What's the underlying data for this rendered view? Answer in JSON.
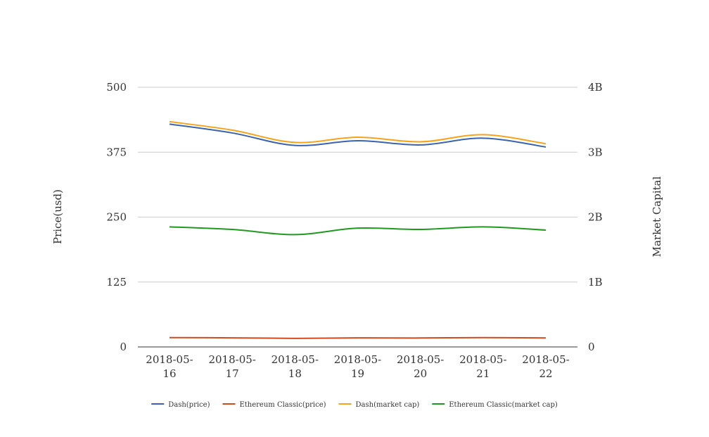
{
  "chart_data": {
    "type": "line",
    "title": "",
    "categories": [
      [
        "2018-05-",
        "16"
      ],
      [
        "2018-05-",
        "17"
      ],
      [
        "2018-05-",
        "18"
      ],
      [
        "2018-05-",
        "19"
      ],
      [
        "2018-05-",
        "20"
      ],
      [
        "2018-05-",
        "21"
      ],
      [
        "2018-05-",
        "22"
      ]
    ],
    "y_left": {
      "label": "Price(usd)",
      "min": 0,
      "max": 500,
      "ticks": [
        0,
        125,
        250,
        375,
        500
      ],
      "tick_labels": [
        "0",
        "125",
        "250",
        "375",
        "500"
      ]
    },
    "y_right": {
      "label": "Market Capital",
      "min": 0,
      "max": 4000000000,
      "ticks": [
        0,
        1000000000,
        2000000000,
        3000000000,
        4000000000
      ],
      "tick_labels": [
        "0",
        "1B",
        "2B",
        "3B",
        "4B"
      ]
    },
    "grid": true,
    "legend_position": "bottom",
    "series": [
      {
        "name": "Dash(price)",
        "axis": "left",
        "color": "#3b64ad",
        "values": [
          429,
          412,
          388,
          397,
          389,
          402,
          385
        ]
      },
      {
        "name": "Ethereum Classic(price)",
        "axis": "left",
        "color": "#d24a1e",
        "values": [
          18,
          17.5,
          16.5,
          17.5,
          17.2,
          18,
          17.3
        ]
      },
      {
        "name": "Dash(market cap)",
        "axis": "right",
        "color": "#f5a31a",
        "values": [
          3470000000,
          3340000000,
          3150000000,
          3230000000,
          3160000000,
          3270000000,
          3130000000
        ]
      },
      {
        "name": "Ethereum Classic(market cap)",
        "axis": "right",
        "color": "#1f9a1f",
        "values": [
          1850000000,
          1810000000,
          1730000000,
          1830000000,
          1810000000,
          1850000000,
          1800000000
        ]
      }
    ]
  }
}
